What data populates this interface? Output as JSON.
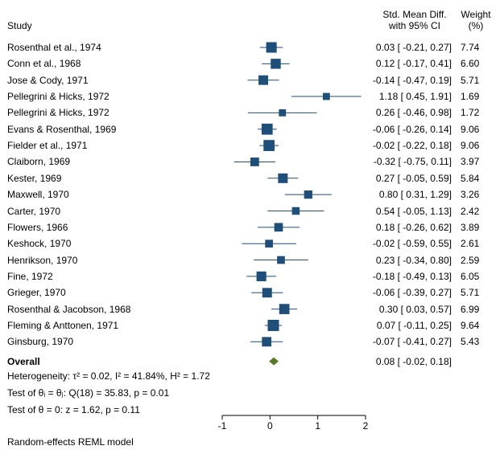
{
  "header": {
    "study_label": "Study",
    "effect_label_line1": "Std. Mean Diff.",
    "effect_label_line2": "with 95% CI",
    "weight_label_line1": "Weight",
    "weight_label_line2": "(%)"
  },
  "chart_data": {
    "type": "forest",
    "xlim": [
      -1,
      2
    ],
    "xticks": [
      "-1",
      "0",
      "1",
      "2"
    ],
    "studies": [
      {
        "name": "Rosenthal et al., 1974",
        "est": 0.03,
        "lo": -0.21,
        "hi": 0.27,
        "ci_text": "0.03 [ -0.21, 0.27]",
        "weight": "7.74"
      },
      {
        "name": "Conn et al., 1968",
        "est": 0.12,
        "lo": -0.17,
        "hi": 0.41,
        "ci_text": "0.12 [ -0.17, 0.41]",
        "weight": "6.60"
      },
      {
        "name": "Jose & Cody, 1971",
        "est": -0.14,
        "lo": -0.47,
        "hi": 0.19,
        "ci_text": "-0.14 [ -0.47, 0.19]",
        "weight": "5.71"
      },
      {
        "name": "Pellegrini & Hicks, 1972",
        "est": 1.18,
        "lo": 0.45,
        "hi": 1.91,
        "ci_text": "1.18 [ 0.45, 1.91]",
        "weight": "1.69"
      },
      {
        "name": "Pellegrini & Hicks, 1972",
        "est": 0.26,
        "lo": -0.46,
        "hi": 0.98,
        "ci_text": "0.26 [ -0.46, 0.98]",
        "weight": "1.72"
      },
      {
        "name": "Evans & Rosenthal, 1969",
        "est": -0.06,
        "lo": -0.26,
        "hi": 0.14,
        "ci_text": "-0.06 [ -0.26, 0.14]",
        "weight": "9.06"
      },
      {
        "name": "Fielder et al., 1971",
        "est": -0.02,
        "lo": -0.22,
        "hi": 0.18,
        "ci_text": "-0.02 [ -0.22, 0.18]",
        "weight": "9.06"
      },
      {
        "name": "Claiborn, 1969",
        "est": -0.32,
        "lo": -0.75,
        "hi": 0.11,
        "ci_text": "-0.32 [ -0.75, 0.11]",
        "weight": "3.97"
      },
      {
        "name": "Kester, 1969",
        "est": 0.27,
        "lo": -0.05,
        "hi": 0.59,
        "ci_text": "0.27 [ -0.05, 0.59]",
        "weight": "5.84"
      },
      {
        "name": "Maxwell, 1970",
        "est": 0.8,
        "lo": 0.31,
        "hi": 1.29,
        "ci_text": "0.80 [ 0.31, 1.29]",
        "weight": "3.26"
      },
      {
        "name": "Carter, 1970",
        "est": 0.54,
        "lo": -0.05,
        "hi": 1.13,
        "ci_text": "0.54 [ -0.05, 1.13]",
        "weight": "2.42"
      },
      {
        "name": "Flowers, 1966",
        "est": 0.18,
        "lo": -0.26,
        "hi": 0.62,
        "ci_text": "0.18 [ -0.26, 0.62]",
        "weight": "3.89"
      },
      {
        "name": "Keshock, 1970",
        "est": -0.02,
        "lo": -0.59,
        "hi": 0.55,
        "ci_text": "-0.02 [ -0.59, 0.55]",
        "weight": "2.61"
      },
      {
        "name": "Henrikson, 1970",
        "est": 0.23,
        "lo": -0.34,
        "hi": 0.8,
        "ci_text": "0.23 [ -0.34, 0.80]",
        "weight": "2.59"
      },
      {
        "name": "Fine, 1972",
        "est": -0.18,
        "lo": -0.49,
        "hi": 0.13,
        "ci_text": "-0.18 [ -0.49, 0.13]",
        "weight": "6.05"
      },
      {
        "name": "Grieger, 1970",
        "est": -0.06,
        "lo": -0.39,
        "hi": 0.27,
        "ci_text": "-0.06 [ -0.39, 0.27]",
        "weight": "5.71"
      },
      {
        "name": "Rosenthal & Jacobson, 1968",
        "est": 0.3,
        "lo": 0.03,
        "hi": 0.57,
        "ci_text": "0.30 [ 0.03, 0.57]",
        "weight": "6.99"
      },
      {
        "name": "Fleming & Anttonen, 1971",
        "est": 0.07,
        "lo": -0.11,
        "hi": 0.25,
        "ci_text": "0.07 [ -0.11, 0.25]",
        "weight": "9.64"
      },
      {
        "name": "Ginsburg, 1970",
        "est": -0.07,
        "lo": -0.41,
        "hi": 0.27,
        "ci_text": "-0.07 [ -0.41, 0.27]",
        "weight": "5.43"
      }
    ],
    "overall": {
      "name": "Overall",
      "est": 0.08,
      "lo": -0.02,
      "hi": 0.18,
      "ci_text": "0.08 [ -0.02, 0.18]"
    },
    "colors": {
      "marker": "#1f4e79",
      "ci_line": "#1f4e79",
      "overall_diamond": "#5a7a2a"
    }
  },
  "footer": {
    "heterogeneity": "Heterogeneity: τ² = 0.02, I² = 41.84%, H² = 1.72",
    "test_theta_i": "Test of θᵢ = θⱼ: Q(18) = 35.83, p = 0.01",
    "test_theta_0": "Test of θ = 0: z = 1.62, p = 0.11",
    "model": "Random-effects REML model"
  }
}
